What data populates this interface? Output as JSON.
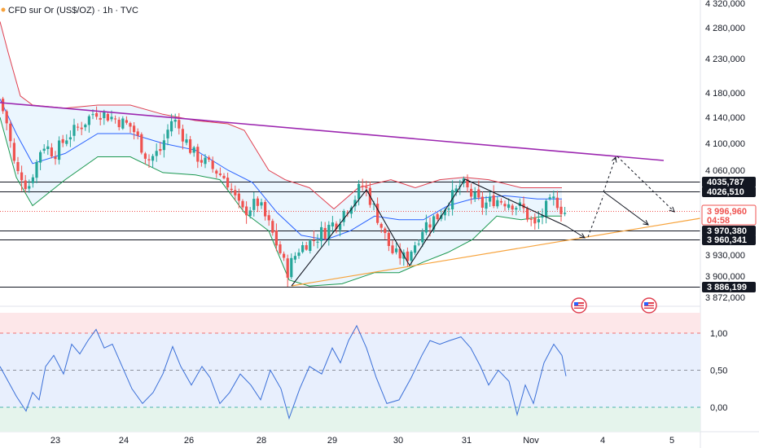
{
  "header": {
    "title": "CFD sur Or (US$/OZ) · 1h · TVC"
  },
  "colors": {
    "up": "#26a69a",
    "down": "#ef5350",
    "bb_upper": "#e04050",
    "bb_basis": "#2962ff",
    "bb_lower": "#1a9850",
    "bb_fill": "#e3f2fd",
    "trend_upper": "#9c27b0",
    "trend_lower": "#f7a33c",
    "rsi_line": "#3a6fd8",
    "hline": "#131722",
    "current_price": "#ef5350"
  },
  "chart_data": [
    {
      "type": "candlestick",
      "instrument": "CFD sur Or (US$/OZ)",
      "interval": "1h",
      "source": "TVC",
      "y_axis": {
        "ticks": [
          4320,
          4280,
          4230,
          4180,
          4140,
          4100,
          4060,
          3930,
          3900,
          3872
        ],
        "tick_labels": [
          "4 320,000",
          "4 280,000",
          "4 230,000",
          "4 180,000",
          "4 140,000",
          "4 100,000",
          "4 060,000",
          "3 930,000",
          "3 900,000",
          "3 872,000"
        ]
      },
      "x_axis": {
        "ticks": [
          "23",
          "24",
          "26",
          "28",
          "29",
          "30",
          "31",
          "Nov",
          "4",
          "5"
        ]
      },
      "price_labels": [
        {
          "value": 4035.787,
          "text": "4035,787",
          "style": "dark"
        },
        {
          "value": 4026.51,
          "text": "4026,510",
          "style": "dark"
        },
        {
          "value": 3996.96,
          "text": "3 996,960",
          "style": "current"
        },
        {
          "value": 3970.38,
          "text": "3 970,380",
          "style": "dark"
        },
        {
          "value": 3960.341,
          "text": "3 960,341",
          "style": "dark"
        },
        {
          "value": 3886.199,
          "text": "3 886,199",
          "style": "dark"
        }
      ],
      "countdown": "04:58",
      "horizontal_levels": [
        4035.787,
        4026.51,
        3970.38,
        3960.341,
        3886.199
      ],
      "series": [
        {
          "name": "Bollinger upper",
          "kind": "band"
        },
        {
          "name": "Bollinger basis",
          "kind": "band"
        },
        {
          "name": "Bollinger lower",
          "kind": "band"
        }
      ],
      "annotations": {
        "descending_trendline": "purple",
        "ascending_trendline": "orange",
        "zigzag_pattern": "black",
        "projected_path": "dashed arrows"
      }
    },
    {
      "type": "line",
      "indicator": "oscillator",
      "y_axis": {
        "ticks": [
          1.0,
          0.5,
          0.0
        ],
        "tick_labels": [
          "1,00",
          "0,50",
          "0,00"
        ]
      },
      "bands": {
        "overbought": 1.0,
        "mid": 0.5,
        "oversold": 0.0
      }
    }
  ],
  "events": [
    {
      "icon": "us-flag-icon",
      "position": "Nov"
    },
    {
      "icon": "us-flag-icon",
      "position": "4"
    }
  ]
}
